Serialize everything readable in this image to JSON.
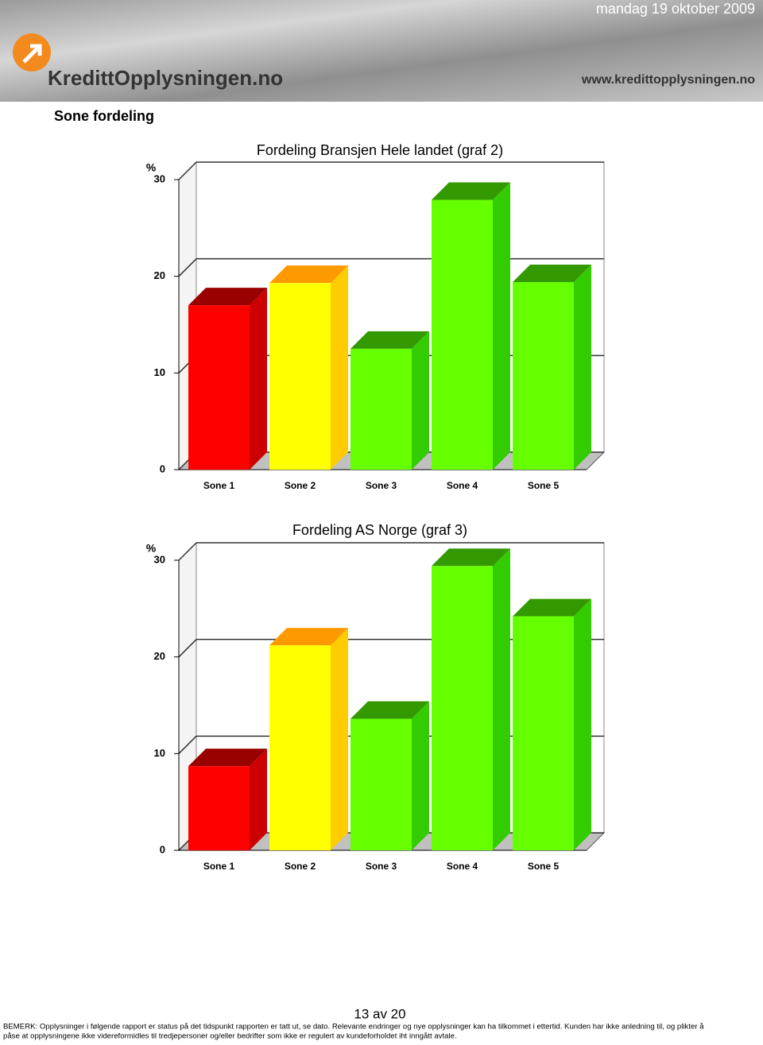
{
  "header": {
    "date": "mandag 19 oktober 2009",
    "logo": "KredittOpplysningen.no",
    "website": "www.kredittopplysningen.no"
  },
  "section_title": "Sone fordeling",
  "chart_data": [
    {
      "type": "bar3d",
      "title": "Fordeling Bransjen Hele landet (graf 2)",
      "y_label": "%",
      "categories": [
        "Sone 1",
        "Sone 2",
        "Sone 3",
        "Sone 4",
        "Sone 5"
      ],
      "values": [
        17,
        19.3,
        12.5,
        27.9,
        19.4
      ],
      "colors": [
        "#ff0000",
        "#ffff00",
        "#66ff00",
        "#66ff00",
        "#66ff00"
      ],
      "top_colors": [
        "#990000",
        "#ff9900",
        "#339900",
        "#339900",
        "#339900"
      ],
      "side_colors": [
        "#cc0000",
        "#ffcc00",
        "#33cc00",
        "#33cc00",
        "#33cc00"
      ],
      "ylim": [
        0,
        30
      ],
      "yticks": [
        0,
        10,
        20,
        30
      ],
      "grid": true
    },
    {
      "type": "bar3d",
      "title": "Fordeling AS Norge (graf 3)",
      "y_label": "%",
      "categories": [
        "Sone 1",
        "Sone 2",
        "Sone 3",
        "Sone 4",
        "Sone 5"
      ],
      "values": [
        8.7,
        21.2,
        13.6,
        29.4,
        24.2
      ],
      "colors": [
        "#ff0000",
        "#ffff00",
        "#66ff00",
        "#66ff00",
        "#66ff00"
      ],
      "top_colors": [
        "#990000",
        "#ff9900",
        "#339900",
        "#339900",
        "#339900"
      ],
      "side_colors": [
        "#cc0000",
        "#ffcc00",
        "#33cc00",
        "#33cc00",
        "#33cc00"
      ],
      "ylim": [
        0,
        30
      ],
      "yticks": [
        0,
        10,
        20,
        30
      ],
      "grid": true
    }
  ],
  "footer": {
    "page": "13 av  20",
    "note_line1": "BEMERK: Opplysninger i følgende rapport er status på det tidspunkt rapporten er tatt ut, se dato. Relevante endringer og nye opplysninger kan ha tilkommet i ettertid. Kunden har ikke anledning til, og plikter å",
    "note_line2": "påse at opplysningene ikke videreformidles til tredjepersoner og/eller bedrifter som ikke er regulert av kundeforholdet iht inngått avtale."
  }
}
